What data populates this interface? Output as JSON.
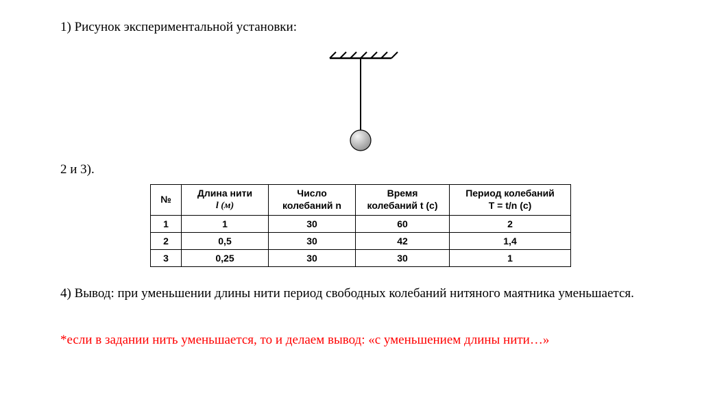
{
  "heading1": "1) Рисунок экспериментальной установки:",
  "section23": "2 и 3).",
  "table": {
    "columns": [
      {
        "label_line1": "№",
        "label_line2": "",
        "width_class": "col-num"
      },
      {
        "label_line1": "Длина нити",
        "label_line2": "l (м)",
        "width_class": "col-len",
        "italic_var": true
      },
      {
        "label_line1": "Число",
        "label_line2": "колебаний n",
        "width_class": "col-n"
      },
      {
        "label_line1": "Время",
        "label_line2": "колебаний t (с)",
        "width_class": "col-t"
      },
      {
        "label_line1": "Период колебаний",
        "label_line2": "T = t/n (с)",
        "width_class": "col-T"
      }
    ],
    "rows": [
      [
        "1",
        "1",
        "30",
        "60",
        "2"
      ],
      [
        "2",
        "0,5",
        "30",
        "42",
        "1,4"
      ],
      [
        "3",
        "0,25",
        "30",
        "30",
        "1"
      ]
    ],
    "border_color": "#000000",
    "header_fontsize": 14,
    "cell_fontsize": 14
  },
  "conclusion": "4) Вывод: при уменьшении длины нити период свободных колебаний нитяного маятника уменьшается.",
  "footnote": "*если в задании нить уменьшается, то и делаем вывод: «с уменьшением длины нити…»",
  "pendulum": {
    "support_width": 90,
    "hatch_count": 6,
    "string_length": 105,
    "bob_radius": 15,
    "bob_fill_top": "#f4f4f4",
    "bob_fill_bottom": "#9a9a9a",
    "stroke": "#000000",
    "stroke_width": 2.4
  },
  "colors": {
    "text": "#000000",
    "footnote": "#ff0000",
    "bg": "#ffffff"
  }
}
